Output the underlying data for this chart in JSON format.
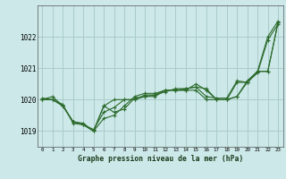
{
  "title": "Graphe pression niveau de la mer (hPa)",
  "bg_color": "#cce8e8",
  "grid_color": "#aacccc",
  "line_color": "#2d6b2d",
  "xlim": [
    -0.5,
    23.5
  ],
  "ylim": [
    1018.5,
    1023.0
  ],
  "yticks": [
    1019,
    1020,
    1021,
    1022
  ],
  "xticks": [
    0,
    1,
    2,
    3,
    4,
    5,
    6,
    7,
    8,
    9,
    10,
    11,
    12,
    13,
    14,
    15,
    16,
    17,
    18,
    19,
    20,
    21,
    22,
    23
  ],
  "series": [
    [
      1020.0,
      1020.1,
      1019.8,
      1019.3,
      1019.2,
      1019.0,
      1019.4,
      1019.5,
      1019.8,
      1020.1,
      1020.2,
      1020.2,
      1020.3,
      1020.3,
      1020.3,
      1020.3,
      1020.0,
      1020.0,
      1020.0,
      1020.1,
      1020.6,
      1020.9,
      1022.0,
      1022.5
    ],
    [
      1020.0,
      1020.0,
      1019.8,
      1019.3,
      1019.2,
      1019.0,
      1019.8,
      1020.0,
      1020.0,
      1020.0,
      1020.1,
      1020.1,
      1020.3,
      1020.3,
      1020.3,
      1020.5,
      1020.3,
      1020.0,
      1020.0,
      1020.1,
      1020.55,
      1020.85,
      1021.9,
      1022.4
    ],
    [
      1020.0,
      1020.0,
      1019.85,
      1019.25,
      1019.2,
      1019.05,
      1019.6,
      1019.75,
      1020.0,
      1020.0,
      1020.15,
      1020.15,
      1020.3,
      1020.3,
      1020.35,
      1020.4,
      1020.35,
      1020.0,
      1020.0,
      1020.55,
      1020.55,
      1020.9,
      1020.9,
      1022.45
    ],
    [
      1020.05,
      1020.0,
      1019.8,
      1019.3,
      1019.25,
      1019.0,
      1019.8,
      1019.6,
      1019.7,
      1020.05,
      1020.1,
      1020.15,
      1020.25,
      1020.35,
      1020.35,
      1020.4,
      1020.1,
      1020.05,
      1020.05,
      1020.6,
      1020.55,
      1020.9,
      1020.9,
      1022.45
    ]
  ]
}
